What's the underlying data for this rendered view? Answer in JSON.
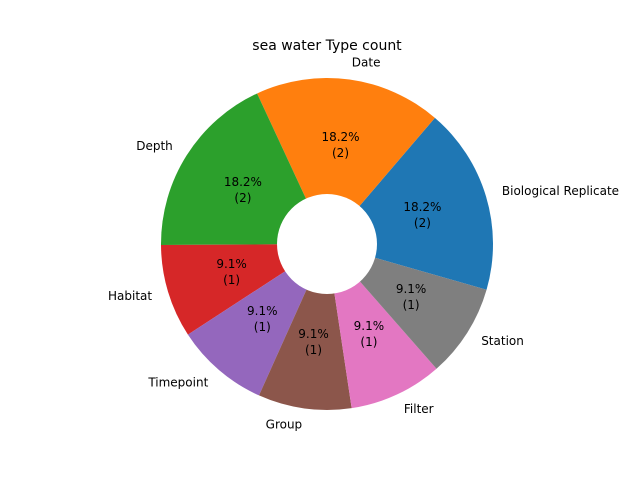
{
  "chart_data": {
    "type": "pie",
    "title": "sea water Type count",
    "donut": true,
    "start_angle_deg": -16,
    "direction": "counterclockwise",
    "slices": [
      {
        "label": "Biological Replicate",
        "count": 2,
        "percent_text": "18.2%",
        "count_text": "(2)",
        "color": "#1f77b4"
      },
      {
        "label": "Date",
        "count": 2,
        "percent_text": "18.2%",
        "count_text": "(2)",
        "color": "#ff7f0e"
      },
      {
        "label": "Depth",
        "count": 2,
        "percent_text": "18.2%",
        "count_text": "(2)",
        "color": "#2ca02c"
      },
      {
        "label": "Habitat",
        "count": 1,
        "percent_text": "9.1%",
        "count_text": "(1)",
        "color": "#d62728"
      },
      {
        "label": "Timepoint",
        "count": 1,
        "percent_text": "9.1%",
        "count_text": "(1)",
        "color": "#9467bd"
      },
      {
        "label": "Group",
        "count": 1,
        "percent_text": "9.1%",
        "count_text": "(1)",
        "color": "#8c564b"
      },
      {
        "label": "Filter",
        "count": 1,
        "percent_text": "9.1%",
        "count_text": "(1)",
        "color": "#e377c2"
      },
      {
        "label": "Station",
        "count": 1,
        "percent_text": "9.1%",
        "count_text": "(1)",
        "color": "#7f7f7f"
      }
    ]
  }
}
